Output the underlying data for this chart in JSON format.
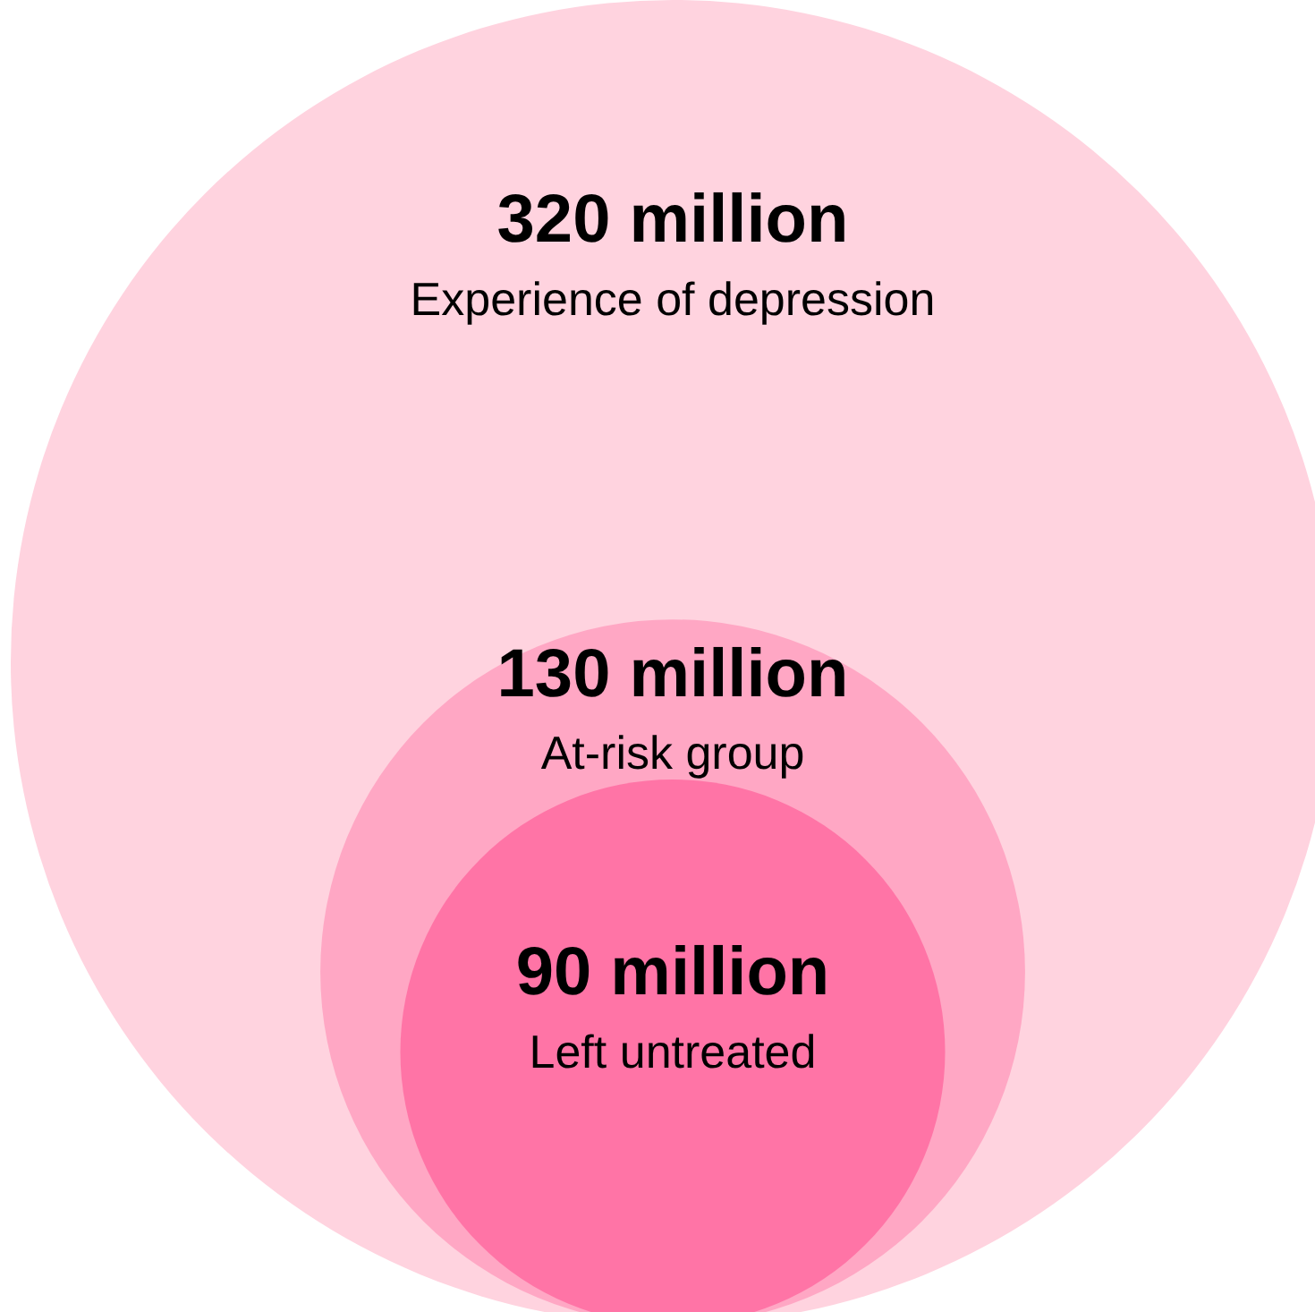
{
  "chart_data": {
    "type": "other",
    "categories": [
      "Experience of depression",
      "At-risk group",
      "Left untreated"
    ],
    "values": [
      320,
      130,
      90
    ],
    "value_labels": [
      "320 million",
      "130 million",
      "90 million"
    ],
    "colors": [
      "#ffd3df",
      "#ffa7c4",
      "#ff74a6"
    ]
  }
}
